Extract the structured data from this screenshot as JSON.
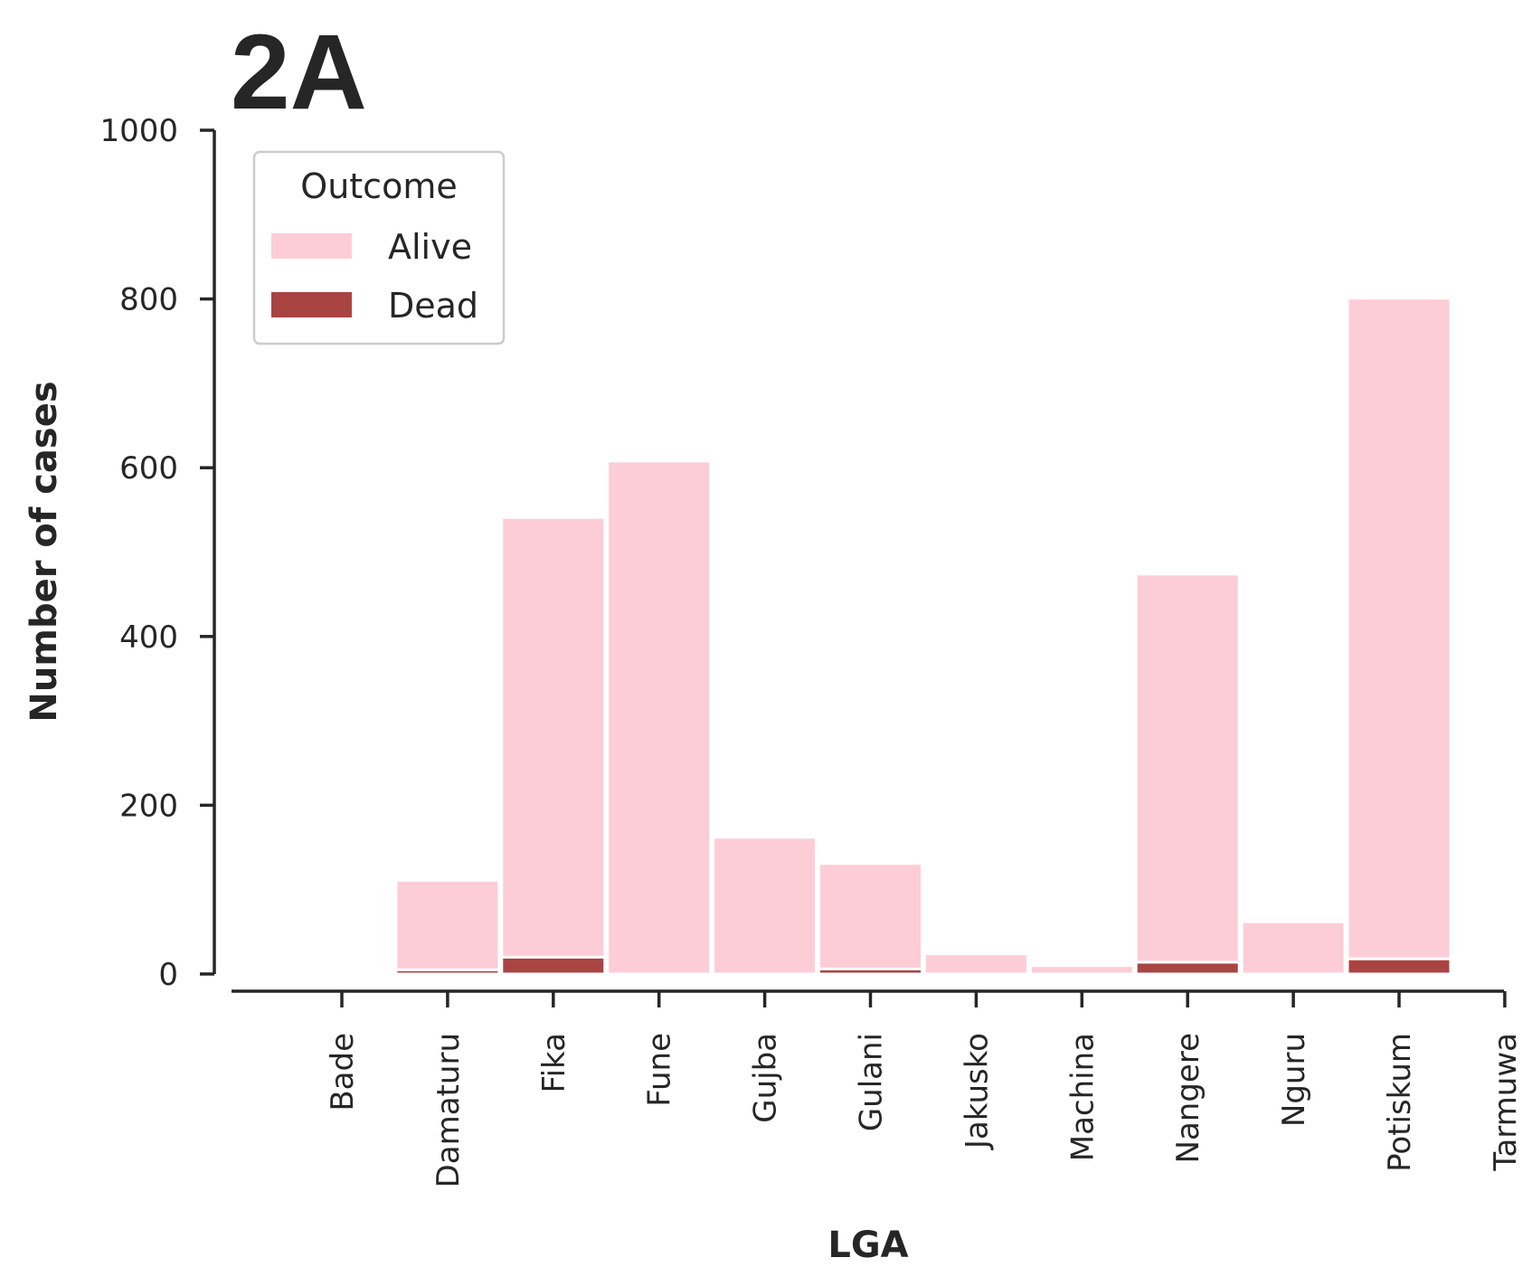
{
  "chart_data": {
    "type": "bar",
    "stacked": true,
    "title": "2A",
    "xlabel": "LGA",
    "ylabel": "Number of cases",
    "ylim": [
      0,
      1000
    ],
    "yticks": [
      0,
      200,
      400,
      600,
      800,
      1000
    ],
    "grid": false,
    "categories": [
      "Bade",
      "Damaturu",
      "Fika",
      "Fune",
      "Gujba",
      "Gulani",
      "Jakusko",
      "Machina",
      "Nangere",
      "Nguru",
      "Potiskum",
      "Tarmuwa"
    ],
    "series": [
      {
        "name": "Dead",
        "color": "#a94442",
        "values": [
          0,
          5,
          20,
          0,
          0,
          6,
          0,
          0,
          14,
          0,
          18,
          0
        ]
      },
      {
        "name": "Alive",
        "color": "#fdcdd7",
        "values": [
          0,
          106,
          521,
          608,
          162,
          125,
          24,
          10,
          460,
          62,
          783,
          0
        ]
      }
    ],
    "legend": {
      "title": "Outcome",
      "placement": "upper-left",
      "entries": [
        {
          "label": "Alive",
          "color": "#fdcdd7"
        },
        {
          "label": "Dead",
          "color": "#a94442"
        }
      ]
    }
  }
}
